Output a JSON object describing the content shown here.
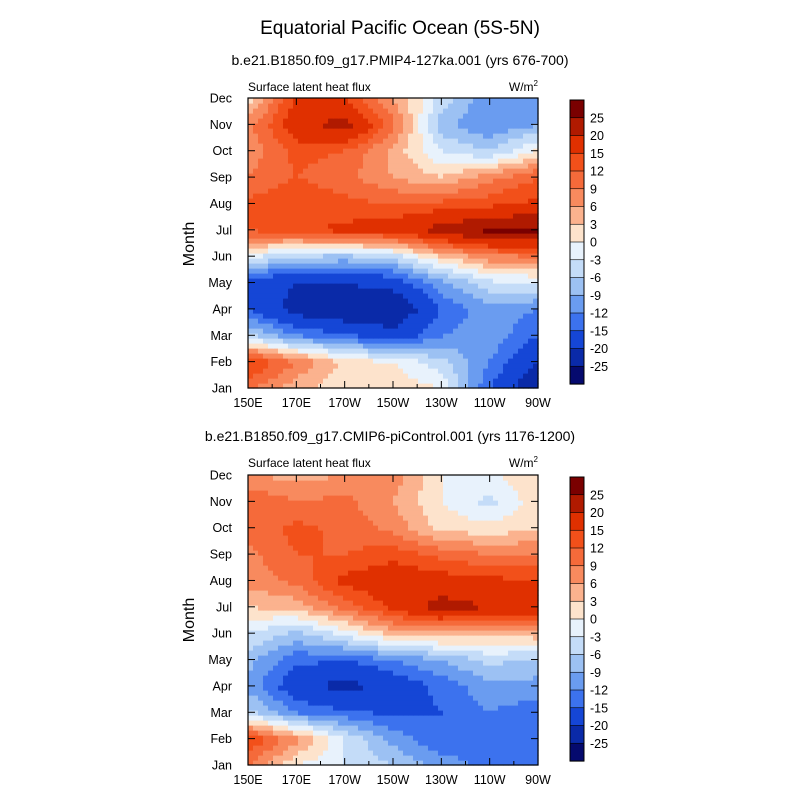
{
  "figure": {
    "title": "Equatorial Pacific Ocean (5S-5N)"
  },
  "colorbar_levels": [
    "25",
    "20",
    "15",
    "12",
    "9",
    "6",
    "3",
    "0",
    "-3",
    "-6",
    "-9",
    "-12",
    "-15",
    "-20",
    "-25"
  ],
  "colorbar_colors": [
    "#7a0000",
    "#b01a00",
    "#e03000",
    "#f2501a",
    "#f56a3a",
    "#f88a5e",
    "#fbb28e",
    "#fde3cc",
    "#e8f2fc",
    "#c4dcf8",
    "#9cc1f3",
    "#6a9cf0",
    "#3c72ee",
    "#1546d6",
    "#0a2aa8",
    "#050a6e"
  ],
  "chart_data": [
    {
      "type": "heatmap",
      "title": "b.e21.B1850.f09_g17.PMIP4-127ka.001 (yrs 676-700)",
      "subtitle_left": "Surface latent heat flux",
      "units": "W/m",
      "units_sup": "2",
      "xlabel": "",
      "ylabel": "Month",
      "x_tick_labels": [
        "150E",
        "170E",
        "170W",
        "150W",
        "130W",
        "110W",
        "90W"
      ],
      "x_range_deg": [
        150,
        270
      ],
      "y_tick_labels": [
        "Jan",
        "Feb",
        "Mar",
        "Apr",
        "May",
        "Jun",
        "Jul",
        "Aug",
        "Sep",
        "Oct",
        "Nov",
        "Dec"
      ],
      "z_range": [
        -25,
        25
      ],
      "longitudes": [
        150,
        170,
        190,
        210,
        230,
        250,
        270
      ],
      "values": [
        [
          10,
          4,
          1,
          2,
          0,
          -15,
          -25
        ],
        [
          16,
          9,
          2,
          0,
          -5,
          -12,
          -20
        ],
        [
          -5,
          -12,
          -14,
          -18,
          -12,
          -10,
          -15
        ],
        [
          -15,
          -22,
          -25,
          -25,
          -15,
          -10,
          -12
        ],
        [
          -18,
          -20,
          -20,
          -18,
          -10,
          -4,
          -3
        ],
        [
          -2,
          -6,
          -7,
          -5,
          3,
          8,
          9
        ],
        [
          12,
          14,
          16,
          17,
          22,
          26,
          26
        ],
        [
          13,
          15,
          13,
          12,
          13,
          14,
          16
        ],
        [
          9,
          12,
          10,
          6,
          3,
          8,
          12
        ],
        [
          7,
          13,
          12,
          5,
          -3,
          -6,
          1
        ],
        [
          8,
          18,
          22,
          10,
          -8,
          -12,
          -9
        ],
        [
          1,
          16,
          15,
          6,
          -4,
          -12,
          -9
        ]
      ]
    },
    {
      "type": "heatmap",
      "title": "b.e21.B1850.f09_g17.CMIP6-piControl.001 (yrs 1176-1200)",
      "subtitle_left": "Surface latent heat flux",
      "units": "W/m",
      "units_sup": "2",
      "xlabel": "",
      "ylabel": "Month",
      "x_tick_labels": [
        "150E",
        "170E",
        "170W",
        "150W",
        "130W",
        "110W",
        "90W"
      ],
      "x_range_deg": [
        150,
        270
      ],
      "y_tick_labels": [
        "Jan",
        "Feb",
        "Mar",
        "Apr",
        "May",
        "Jun",
        "Jul",
        "Aug",
        "Sep",
        "Oct",
        "Nov",
        "Dec"
      ],
      "z_range": [
        -25,
        25
      ],
      "longitudes": [
        150,
        170,
        190,
        210,
        230,
        250,
        270
      ],
      "values": [
        [
          9,
          0,
          -3,
          -6,
          -10,
          -13,
          -14
        ],
        [
          15,
          7,
          -3,
          -10,
          -15,
          -14,
          -14
        ],
        [
          -5,
          -12,
          -14,
          -16,
          -15,
          -12,
          -14
        ],
        [
          -10,
          -18,
          -22,
          -18,
          -14,
          -10,
          -10
        ],
        [
          -8,
          -14,
          -15,
          -12,
          -9,
          -5,
          -7
        ],
        [
          -3,
          -7,
          -2,
          4,
          5,
          4,
          5
        ],
        [
          3,
          4,
          10,
          16,
          22,
          20,
          18
        ],
        [
          7,
          10,
          16,
          18,
          17,
          16,
          15
        ],
        [
          8,
          12,
          12,
          14,
          11,
          9,
          9
        ],
        [
          10,
          13,
          11,
          8,
          2,
          1,
          3
        ],
        [
          12,
          9,
          10,
          6,
          0,
          -4,
          2
        ],
        [
          6,
          5,
          6,
          8,
          0,
          -1,
          3
        ]
      ]
    }
  ]
}
